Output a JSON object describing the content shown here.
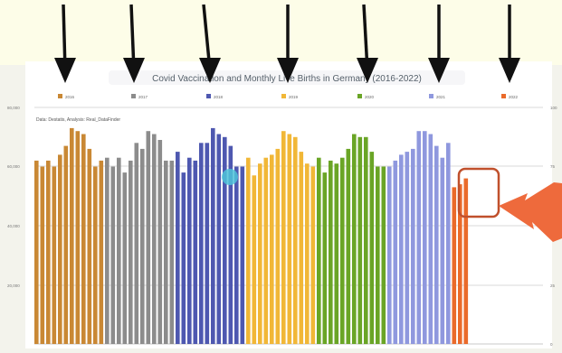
{
  "chart_data": {
    "type": "bar",
    "title": "Covid Vaccination and Monthly Live Births in Germany (2016-2022)",
    "source_note": "Data: Destatis, Analysis: Real_DataFinder",
    "legend": [
      "2016",
      "2017",
      "2018",
      "2019",
      "2020",
      "2021",
      "2022"
    ],
    "colors": [
      "#c98834",
      "#8c8c8c",
      "#4e58b0",
      "#f1b737",
      "#6aa526",
      "#8f98de",
      "#ea6a2a"
    ],
    "y_left_ticks": [
      "80,000",
      "60,000",
      "40,000",
      "20,000"
    ],
    "y_right_ticks": [
      "100",
      "75",
      "50",
      "25",
      "0"
    ],
    "ylim": [
      0,
      80000
    ],
    "series": [
      {
        "name": "2016",
        "values": [
          62000,
          60000,
          62000,
          60000,
          64000,
          67000,
          73000,
          72000,
          71000,
          66000,
          60000,
          62000
        ]
      },
      {
        "name": "2017",
        "values": [
          63000,
          60000,
          63000,
          58000,
          62000,
          68000,
          66000,
          72000,
          71000,
          69000,
          62000,
          62000
        ]
      },
      {
        "name": "2018",
        "values": [
          65000,
          58000,
          63000,
          62000,
          68000,
          68000,
          73000,
          71000,
          70000,
          67000,
          60000,
          60000
        ]
      },
      {
        "name": "2019",
        "values": [
          63000,
          57000,
          61000,
          63000,
          64000,
          66000,
          72000,
          71000,
          70000,
          65000,
          61000,
          60000
        ]
      },
      {
        "name": "2020",
        "values": [
          63000,
          58000,
          62000,
          61000,
          63000,
          66000,
          71000,
          70000,
          70000,
          65000,
          60000,
          60000
        ]
      },
      {
        "name": "2021",
        "values": [
          60000,
          62000,
          64000,
          65000,
          66000,
          72000,
          72000,
          71000,
          67000,
          63000,
          68000
        ]
      },
      {
        "name": "2022",
        "values": [
          53000,
          54000,
          56000
        ]
      }
    ]
  }
}
